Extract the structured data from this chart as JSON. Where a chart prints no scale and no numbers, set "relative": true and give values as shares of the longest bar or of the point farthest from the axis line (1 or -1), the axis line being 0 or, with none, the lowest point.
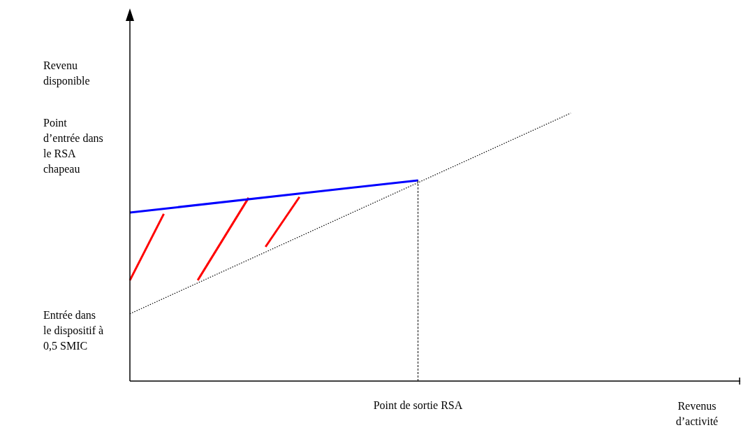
{
  "chart_data": {
    "type": "line",
    "relative": true,
    "tick_labels": false,
    "legend": false,
    "marker": "none",
    "ylabel": "Revenu disponible",
    "xlabel": "Revenus d’activité",
    "annotations": [
      "Point d’entrée dans le RSA chapeau",
      "Entrée dans le dispositif à 0,5 SMIC",
      "Point de sortie RSA"
    ],
    "categories": [
      null,
      null,
      null,
      null,
      null,
      null,
      null,
      null,
      null,
      null,
      null,
      null,
      null,
      null,
      null,
      null,
      null,
      null,
      null,
      null,
      null,
      null,
      null,
      null,
      null,
      null,
      null,
      null,
      null,
      null,
      null,
      null,
      null,
      null,
      null,
      null,
      null
    ],
    "series": [
      {
        "color": "#000000",
        "line_style": "dotted",
        "values": [
          0.251,
          null,
          null,
          null,
          null,
          null,
          null,
          null,
          null,
          null,
          null,
          null,
          null,
          null,
          null,
          null,
          null,
          null,
          null,
          null,
          null,
          null,
          null,
          null,
          null,
          null,
          1,
          null,
          null,
          null,
          null,
          null,
          null,
          null,
          null,
          null,
          null
        ]
      },
      {
        "color": "#0000ff",
        "line_style": "solid",
        "values": [
          0.629,
          null,
          null,
          null,
          null,
          null,
          null,
          null,
          null,
          null,
          null,
          null,
          null,
          null,
          null,
          null,
          null,
          0.749,
          null,
          null,
          null,
          null,
          null,
          null,
          null,
          null,
          null,
          null,
          null,
          null,
          null,
          null,
          null,
          null,
          null,
          null,
          null
        ]
      },
      {
        "color": "#ff0000",
        "line_style": "solid",
        "values": [
          0.376,
          null,
          0.624,
          null,
          null,
          null,
          null,
          null,
          null,
          null,
          null,
          null,
          null,
          null,
          null,
          null,
          null,
          null,
          null,
          null,
          null,
          null,
          null,
          null,
          null,
          null,
          null,
          null,
          null,
          null,
          null,
          null,
          null,
          null,
          null,
          null,
          null
        ]
      },
      {
        "color": "#ff0000",
        "line_style": "solid",
        "values": [
          null,
          null,
          null,
          null,
          0.376,
          null,
          null,
          0.684,
          null,
          null,
          null,
          null,
          null,
          null,
          null,
          null,
          null,
          null,
          null,
          null,
          null,
          null,
          null,
          null,
          null,
          null,
          null,
          null,
          null,
          null,
          null,
          null,
          null,
          null,
          null,
          null,
          null
        ]
      },
      {
        "color": "#ff0000",
        "line_style": "solid",
        "values": [
          null,
          null,
          null,
          null,
          null,
          null,
          null,
          null,
          0.501,
          null,
          0.687,
          null,
          null,
          null,
          null,
          null,
          null,
          null,
          null,
          null,
          null,
          null,
          null,
          null,
          null,
          null,
          null,
          null,
          null,
          null,
          null,
          null,
          null,
          null,
          null,
          null,
          null
        ]
      }
    ]
  }
}
